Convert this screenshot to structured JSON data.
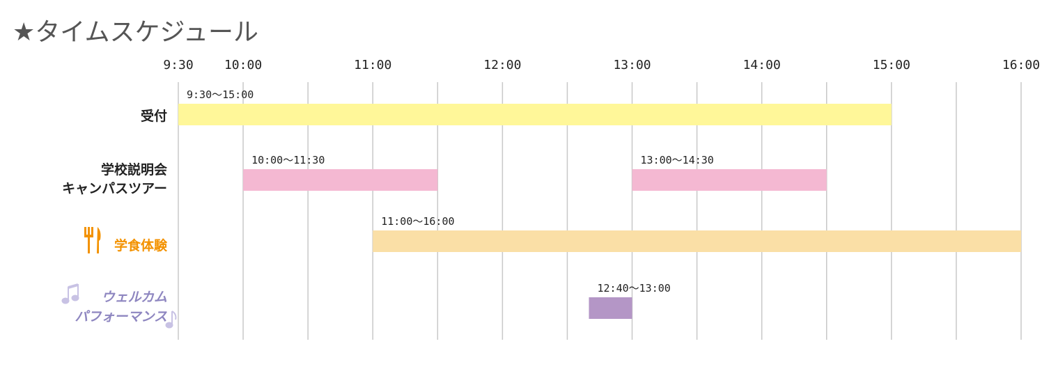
{
  "title": "★タイムスケジュール",
  "chart_data": {
    "type": "bar",
    "orientation": "horizontal-timeline",
    "xlim": [
      "9:30",
      "16:00"
    ],
    "grid": true,
    "ticks": [
      "9:30",
      "10:00",
      "11:00",
      "12:00",
      "13:00",
      "14:00",
      "15:00",
      "16:00"
    ],
    "categories": [
      {
        "lines": [
          "受付"
        ],
        "color": "#222222"
      },
      {
        "lines": [
          "学校説明会",
          "キャンパスツアー"
        ],
        "color": "#222222"
      },
      {
        "lines": [
          "学食体験"
        ],
        "color": "#f39200",
        "icon": "fork-knife-icon"
      },
      {
        "lines": [
          "ウェルカム",
          "パフォーマンス"
        ],
        "color": "#8e86c0",
        "icon": "music-note-icon"
      }
    ],
    "bars": [
      {
        "row": 0,
        "start": "9:30",
        "end": "15:00",
        "label": "9:30〜15:00",
        "color": "#fff799"
      },
      {
        "row": 1,
        "start": "10:00",
        "end": "11:30",
        "label": "10:00〜11:30",
        "color": "#f4b8d2"
      },
      {
        "row": 1,
        "start": "13:00",
        "end": "14:30",
        "label": "13:00〜14:30",
        "color": "#f4b8d2"
      },
      {
        "row": 2,
        "start": "11:00",
        "end": "16:00",
        "label": "11:00〜16:00",
        "color": "#fadfa6"
      },
      {
        "row": 3,
        "start": "12:40",
        "end": "13:00",
        "label": "12:40〜13:00",
        "color": "#b496c6"
      }
    ]
  }
}
